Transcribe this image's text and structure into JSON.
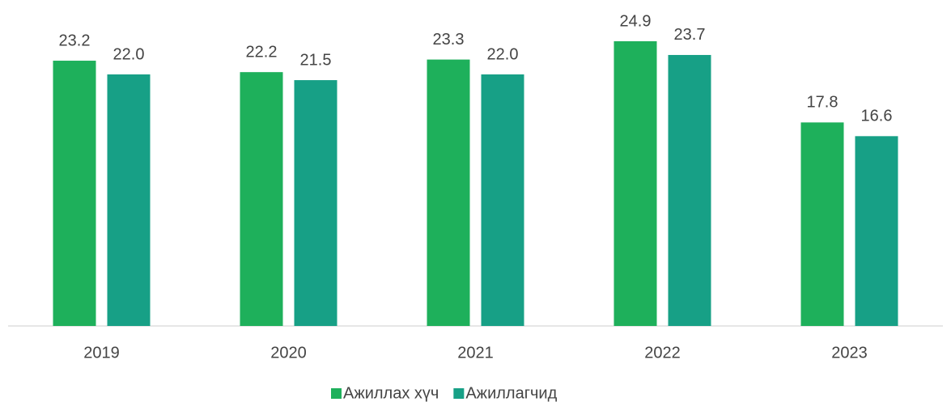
{
  "chart_data": {
    "type": "bar",
    "categories": [
      "2019",
      "2020",
      "2021",
      "2022",
      "2023"
    ],
    "series": [
      {
        "name": "Ажиллах хүч",
        "color": "#1eb05b",
        "values": [
          23.2,
          22.2,
          23.3,
          24.9,
          17.8
        ],
        "value_labels": [
          "23.2",
          "22.2",
          "23.3",
          "24.9",
          "17.8"
        ]
      },
      {
        "name": "Ажиллагчид",
        "color": "#17a086",
        "values": [
          22.0,
          21.5,
          22.0,
          23.7,
          16.6
        ],
        "value_labels": [
          "22.0",
          "21.5",
          "22.0",
          "23.7",
          "16.6"
        ]
      }
    ],
    "legend": "bottom"
  }
}
